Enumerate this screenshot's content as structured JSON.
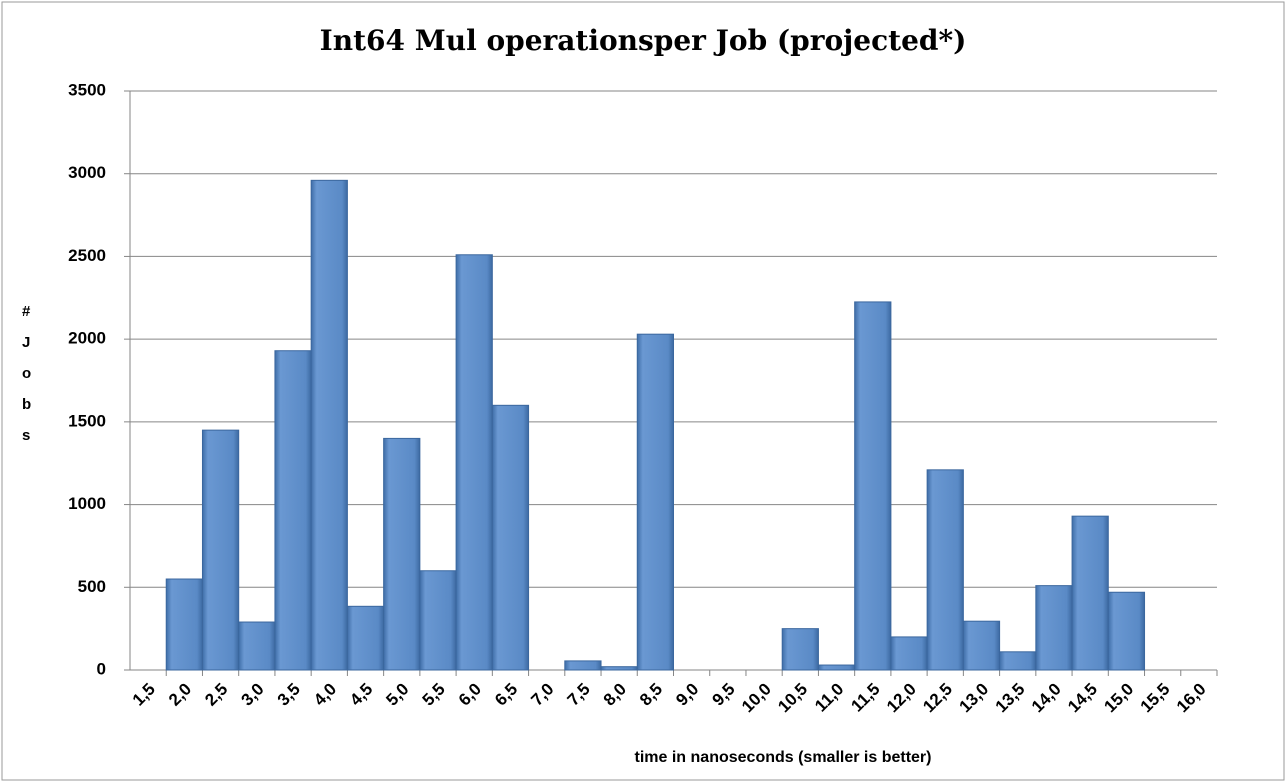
{
  "chart_data": {
    "type": "bar",
    "title": "Int64 Mul operationsper Job (projected*)",
    "x_label": "time in nanoseconds (smaller is better)",
    "y_label": "# Jobs",
    "categories": [
      "1,5",
      "2,0",
      "2,5",
      "3,0",
      "3,5",
      "4,0",
      "4,5",
      "5,0",
      "5,5",
      "6,0",
      "6,5",
      "7,0",
      "7,5",
      "8,0",
      "8,5",
      "9,0",
      "9,5",
      "10,0",
      "10,5",
      "11,0",
      "11,5",
      "12,0",
      "12,5",
      "13,0",
      "13,5",
      "14,0",
      "14,5",
      "15,0",
      "15,5",
      "16,0"
    ],
    "values": [
      0,
      550,
      1450,
      290,
      1930,
      2960,
      385,
      1400,
      600,
      2510,
      1600,
      0,
      55,
      20,
      2030,
      0,
      0,
      0,
      250,
      30,
      2225,
      200,
      1210,
      295,
      110,
      510,
      930,
      470,
      0,
      0
    ],
    "color": "#5a8ac6",
    "ylim": [
      0,
      3500
    ],
    "yticks": [
      0,
      500,
      1000,
      1500,
      2000,
      2500,
      3000,
      3500
    ],
    "grid": true
  }
}
